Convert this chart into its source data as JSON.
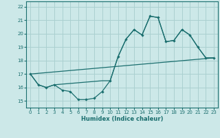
{
  "xlabel": "Humidex (Indice chaleur)",
  "xlim": [
    -0.5,
    23.5
  ],
  "ylim": [
    14.5,
    22.4
  ],
  "yticks": [
    15,
    16,
    17,
    18,
    19,
    20,
    21,
    22
  ],
  "xticks": [
    0,
    1,
    2,
    3,
    4,
    5,
    6,
    7,
    8,
    9,
    10,
    11,
    12,
    13,
    14,
    15,
    16,
    17,
    18,
    19,
    20,
    21,
    22,
    23
  ],
  "bg_color": "#cce8e8",
  "grid_color": "#aad0d0",
  "line_color": "#1a6e6e",
  "line1_x": [
    0,
    1,
    2,
    3,
    4,
    5,
    6,
    7,
    8,
    9,
    10,
    11,
    12,
    13,
    14,
    15,
    16,
    17,
    18,
    19,
    20,
    21,
    22,
    23
  ],
  "line1_y": [
    17.0,
    16.2,
    16.0,
    16.2,
    15.8,
    15.7,
    15.1,
    15.1,
    15.2,
    15.7,
    16.5,
    18.3,
    19.6,
    20.3,
    19.9,
    21.3,
    21.2,
    19.4,
    19.5,
    20.3,
    19.9,
    19.0,
    18.2,
    18.2
  ],
  "line2_x": [
    0,
    1,
    2,
    3,
    9,
    10,
    11,
    12,
    13,
    14,
    15,
    16,
    17,
    18,
    19,
    20,
    21,
    22,
    23
  ],
  "line2_y": [
    17.0,
    16.2,
    16.0,
    16.2,
    16.5,
    16.5,
    18.3,
    19.6,
    20.3,
    19.9,
    21.3,
    21.2,
    19.4,
    19.5,
    20.3,
    19.9,
    19.0,
    18.2,
    18.2
  ],
  "line3_x": [
    0,
    23
  ],
  "line3_y": [
    17.0,
    18.2
  ]
}
